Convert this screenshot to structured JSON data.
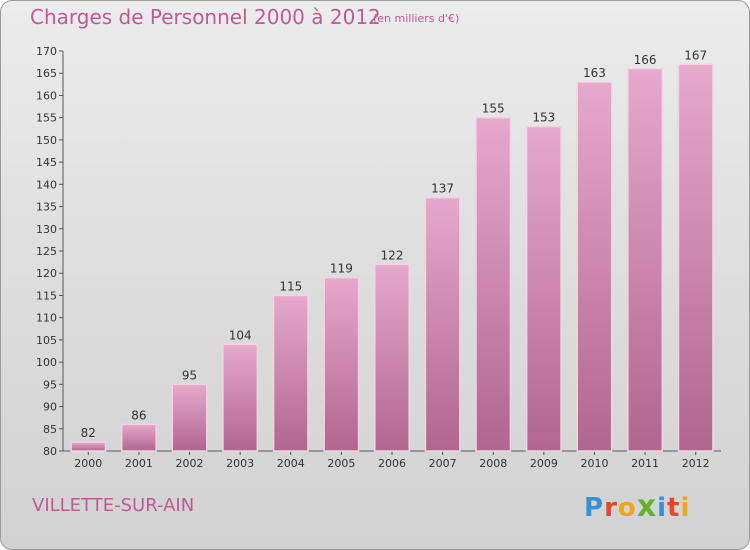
{
  "header": {
    "title": "Charges de Personnel 2000 à 2012",
    "subtitle": "(en milliers d'€)"
  },
  "footer": {
    "commune": "VILLETTE-SUR-AIN",
    "logo_letters": [
      "P",
      "r",
      "o",
      "x",
      "i",
      "t",
      "i"
    ],
    "logo_colors": [
      "#3b8fd4",
      "#e8452c",
      "#f2a51a",
      "#63b22e",
      "#3b8fd4",
      "#e8452c",
      "#f2a51a"
    ]
  },
  "colors": {
    "accent": "#c05a94",
    "bar_top": "#e6a8cc",
    "bar_bottom": "#b0668f",
    "text": "#333333"
  },
  "chart_data": {
    "type": "bar",
    "title": "Charges de Personnel 2000 à 2012",
    "subtitle": "(en milliers d'€)",
    "categories": [
      "2000",
      "2001",
      "2002",
      "2003",
      "2004",
      "2005",
      "2006",
      "2007",
      "2008",
      "2009",
      "2010",
      "2011",
      "2012"
    ],
    "values": [
      82,
      86,
      95,
      104,
      115,
      119,
      122,
      137,
      155,
      153,
      163,
      166,
      167
    ],
    "ylim": [
      80,
      170
    ],
    "ytick_step": 5,
    "grid": false,
    "data_labels": true
  }
}
